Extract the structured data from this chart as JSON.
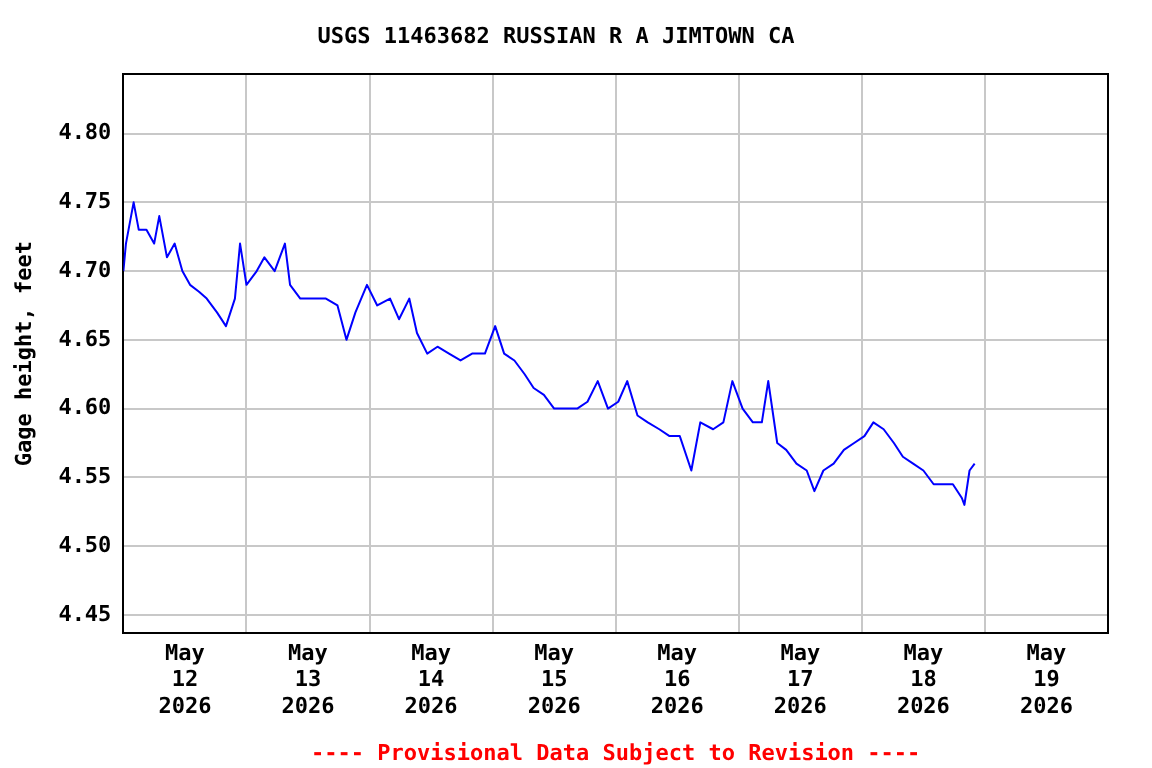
{
  "chart_data": {
    "type": "line",
    "title": "USGS 11463682 RUSSIAN R A JIMTOWN CA",
    "ylabel": "Gage height, feet",
    "annotations": [
      "---- Provisional Data Subject to Revision ----"
    ],
    "x": [
      "2026-05-12T00:00",
      "2026-05-12T00:30",
      "2026-05-12T01:00",
      "2026-05-12T02:00",
      "2026-05-12T03:00",
      "2026-05-12T04:30",
      "2026-05-12T06:00",
      "2026-05-12T07:00",
      "2026-05-12T08:30",
      "2026-05-12T10:00",
      "2026-05-12T11:30",
      "2026-05-12T13:00",
      "2026-05-12T14:45",
      "2026-05-12T16:15",
      "2026-05-12T18:15",
      "2026-05-12T20:00",
      "2026-05-12T21:45",
      "2026-05-12T22:45",
      "2026-05-13T00:00",
      "2026-05-13T02:00",
      "2026-05-13T03:30",
      "2026-05-13T05:30",
      "2026-05-13T07:30",
      "2026-05-13T08:30",
      "2026-05-13T10:30",
      "2026-05-13T12:45",
      "2026-05-13T15:30",
      "2026-05-13T17:45",
      "2026-05-13T19:30",
      "2026-05-13T21:15",
      "2026-05-13T23:30",
      "2026-05-14T01:30",
      "2026-05-14T04:00",
      "2026-05-14T05:45",
      "2026-05-14T07:45",
      "2026-05-14T09:15",
      "2026-05-14T11:15",
      "2026-05-14T13:15",
      "2026-05-14T15:30",
      "2026-05-14T17:45",
      "2026-05-14T20:00",
      "2026-05-14T22:30",
      "2026-05-15T00:30",
      "2026-05-15T02:15",
      "2026-05-15T04:15",
      "2026-05-15T06:15",
      "2026-05-15T08:00",
      "2026-05-15T10:00",
      "2026-05-15T12:00",
      "2026-05-15T14:15",
      "2026-05-15T16:30",
      "2026-05-15T18:30",
      "2026-05-15T20:30",
      "2026-05-15T22:30",
      "2026-05-16T00:30",
      "2026-05-16T02:15",
      "2026-05-16T04:15",
      "2026-05-16T06:15",
      "2026-05-16T08:30",
      "2026-05-16T10:30",
      "2026-05-16T12:30",
      "2026-05-16T14:45",
      "2026-05-16T16:30",
      "2026-05-16T19:00",
      "2026-05-16T21:00",
      "2026-05-16T22:45",
      "2026-05-17T00:45",
      "2026-05-17T02:45",
      "2026-05-17T04:30",
      "2026-05-17T05:45",
      "2026-05-17T07:30",
      "2026-05-17T09:15",
      "2026-05-17T11:15",
      "2026-05-17T13:15",
      "2026-05-17T14:45",
      "2026-05-17T16:30",
      "2026-05-17T18:30",
      "2026-05-17T20:30",
      "2026-05-17T22:30",
      "2026-05-18T00:30",
      "2026-05-18T02:15",
      "2026-05-18T04:15",
      "2026-05-18T06:15",
      "2026-05-18T08:00",
      "2026-05-18T10:00",
      "2026-05-18T12:00",
      "2026-05-18T14:00",
      "2026-05-18T16:00",
      "2026-05-18T17:45",
      "2026-05-18T19:30",
      "2026-05-18T20:00",
      "2026-05-18T21:00",
      "2026-05-18T22:00"
    ],
    "series": [
      {
        "color": "#0000ff",
        "values": [
          4.7,
          4.72,
          4.73,
          4.75,
          4.73,
          4.73,
          4.72,
          4.74,
          4.71,
          4.72,
          4.7,
          4.69,
          4.685,
          4.68,
          4.67,
          4.66,
          4.68,
          4.72,
          4.69,
          4.7,
          4.71,
          4.7,
          4.72,
          4.69,
          4.68,
          4.68,
          4.68,
          4.675,
          4.65,
          4.67,
          4.69,
          4.675,
          4.68,
          4.665,
          4.68,
          4.655,
          4.64,
          4.645,
          4.64,
          4.635,
          4.64,
          4.64,
          4.66,
          4.64,
          4.635,
          4.625,
          4.615,
          4.61,
          4.6,
          4.6,
          4.6,
          4.605,
          4.62,
          4.6,
          4.605,
          4.62,
          4.595,
          4.59,
          4.585,
          4.58,
          4.58,
          4.555,
          4.59,
          4.585,
          4.59,
          4.62,
          4.6,
          4.59,
          4.59,
          4.62,
          4.575,
          4.57,
          4.56,
          4.555,
          4.54,
          4.555,
          4.56,
          4.57,
          4.575,
          4.58,
          4.59,
          4.585,
          4.575,
          4.565,
          4.56,
          4.555,
          4.545,
          4.545,
          4.545,
          4.535,
          4.53,
          4.555,
          4.56
        ]
      }
    ],
    "xlim": [
      "2026-05-12T00:00",
      "2026-05-20T00:00"
    ],
    "xticks": [
      {
        "value": "2026-05-12T12:00",
        "label": "May\n12\n2026"
      },
      {
        "value": "2026-05-13T00:00",
        "label": null
      },
      {
        "value": "2026-05-13T12:00",
        "label": "May\n13\n2026"
      },
      {
        "value": "2026-05-14T00:00",
        "label": null
      },
      {
        "value": "2026-05-14T12:00",
        "label": "May\n14\n2026"
      },
      {
        "value": "2026-05-15T00:00",
        "label": null
      },
      {
        "value": "2026-05-15T12:00",
        "label": "May\n15\n2026"
      },
      {
        "value": "2026-05-16T00:00",
        "label": null
      },
      {
        "value": "2026-05-16T12:00",
        "label": "May\n16\n2026"
      },
      {
        "value": "2026-05-17T00:00",
        "label": null
      },
      {
        "value": "2026-05-17T12:00",
        "label": "May\n17\n2026"
      },
      {
        "value": "2026-05-18T00:00",
        "label": null
      },
      {
        "value": "2026-05-18T12:00",
        "label": "May\n18\n2026"
      },
      {
        "value": "2026-05-19T00:00",
        "label": null
      },
      {
        "value": "2026-05-19T12:00",
        "label": "May\n19\n2026"
      }
    ],
    "ylim": [
      4.437,
      4.843
    ],
    "yticks": [
      4.45,
      {
        "value": 4.5,
        "label": "4.50"
      },
      4.55,
      {
        "value": 4.6,
        "label": "4.60"
      },
      4.65,
      {
        "value": 4.7,
        "label": "4.70"
      },
      4.75,
      {
        "value": 4.8,
        "label": "4.80"
      }
    ],
    "grid": true,
    "legend": false,
    "marker": "none",
    "line_style": "solid"
  }
}
